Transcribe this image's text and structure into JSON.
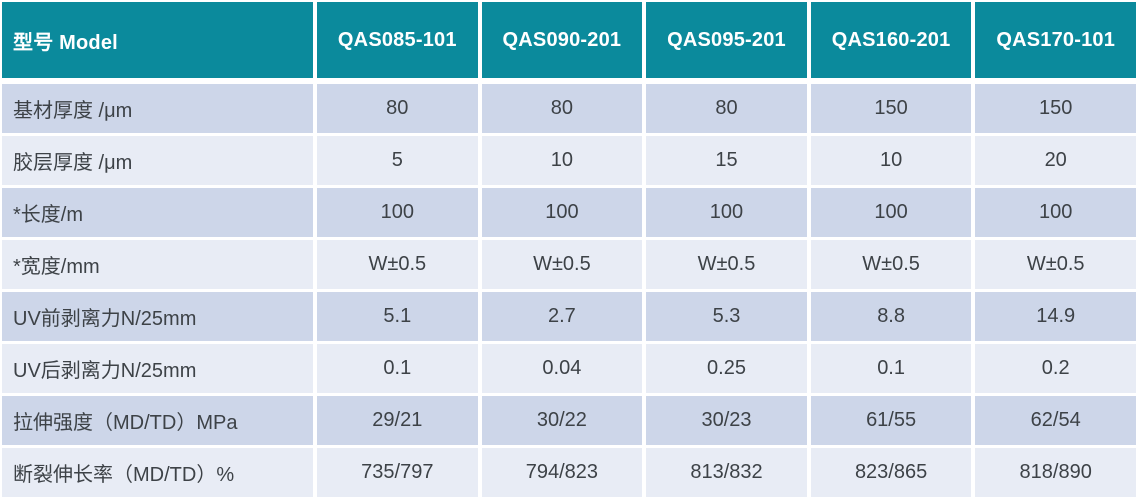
{
  "table": {
    "header": {
      "model_label": "型号 Model",
      "columns": [
        "QAS085-101",
        "QAS090-201",
        "QAS095-201",
        "QAS160-201",
        "QAS170-101"
      ]
    },
    "rows": [
      {
        "label": "基材厚度  /μm",
        "values": [
          "80",
          "80",
          "80",
          "150",
          "150"
        ]
      },
      {
        "label": "胶层厚度 /μm",
        "values": [
          "5",
          "10",
          "15",
          "10",
          "20"
        ]
      },
      {
        "label": "*长度/m",
        "values": [
          "100",
          "100",
          "100",
          "100",
          "100"
        ]
      },
      {
        "label": "*宽度/mm",
        "values": [
          "W±0.5",
          "W±0.5",
          "W±0.5",
          "W±0.5",
          "W±0.5"
        ]
      },
      {
        "label": "UV前剥离力N/25mm",
        "values": [
          "5.1",
          "2.7",
          "5.3",
          "8.8",
          "14.9"
        ]
      },
      {
        "label": "UV后剥离力N/25mm",
        "values": [
          "0.1",
          "0.04",
          "0.25",
          "0.1",
          "0.2"
        ]
      },
      {
        "label": "拉伸强度（MD/TD）MPa",
        "values": [
          "29/21",
          "30/22",
          "30/23",
          "61/55",
          "62/54"
        ]
      },
      {
        "label": "断裂伸长率（MD/TD）%",
        "values": [
          "735/797",
          "794/823",
          "813/832",
          "823/865",
          "818/890"
        ]
      }
    ],
    "colors": {
      "header_bg": "#0b8a9c",
      "header_text": "#ffffff",
      "row_odd_bg": "#cdd6e9",
      "row_even_bg": "#e8ecf5",
      "cell_text": "#3d4247"
    }
  }
}
